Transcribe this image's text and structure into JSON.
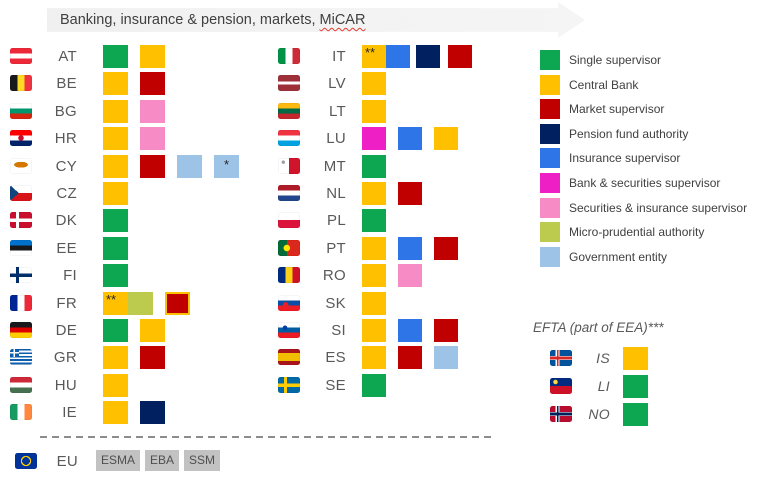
{
  "title": {
    "prefix": "Banking, insurance & pension, markets, ",
    "micar": "MiCAR"
  },
  "palette": {
    "single": "#0ca750",
    "central": "#ffc000",
    "market": "#c00000",
    "pension": "#002060",
    "insurance": "#2e75e8",
    "bank_sec": "#ee1fc5",
    "sec_ins": "#f78bc5",
    "micro": "#bccb4d",
    "gov": "#9dc3e6"
  },
  "legend": [
    {
      "role": "single",
      "label": "Single supervisor"
    },
    {
      "role": "central",
      "label": "Central Bank"
    },
    {
      "role": "market",
      "label": "Market supervisor"
    },
    {
      "role": "pension",
      "label": "Pension fund authority"
    },
    {
      "role": "insurance",
      "label": "Insurance supervisor"
    },
    {
      "role": "bank_sec",
      "label": "Bank & securities supervisor"
    },
    {
      "role": "sec_ins",
      "label": "Securities & insurance supervisor"
    },
    {
      "role": "micro",
      "label": "Micro-prudential authority"
    },
    {
      "role": "gov",
      "label": "Government entity"
    }
  ],
  "columns": {
    "left": [
      {
        "code": "AT",
        "squares": [
          {
            "role": "single"
          },
          {
            "role": "central"
          }
        ]
      },
      {
        "code": "BE",
        "squares": [
          {
            "role": "central"
          },
          {
            "role": "market"
          }
        ]
      },
      {
        "code": "BG",
        "squares": [
          {
            "role": "central"
          },
          {
            "role": "sec_ins"
          }
        ]
      },
      {
        "code": "HR",
        "squares": [
          {
            "role": "central"
          },
          {
            "role": "sec_ins"
          }
        ]
      },
      {
        "code": "CY",
        "squares": [
          {
            "role": "central"
          },
          {
            "role": "market"
          },
          {
            "role": "gov"
          },
          {
            "role": "gov",
            "label": "*",
            "label_center": true
          }
        ]
      },
      {
        "code": "CZ",
        "squares": [
          {
            "role": "central"
          }
        ]
      },
      {
        "code": "DK",
        "squares": [
          {
            "role": "single"
          }
        ]
      },
      {
        "code": "EE",
        "squares": [
          {
            "role": "single"
          }
        ]
      },
      {
        "code": "FI",
        "squares": [
          {
            "role": "single"
          }
        ]
      },
      {
        "code": "FR",
        "squares": [
          {
            "role": "central",
            "label": "**"
          },
          {
            "role": "micro",
            "joined": true
          },
          {
            "role": "market",
            "outline": "#ffc000"
          }
        ]
      },
      {
        "code": "DE",
        "squares": [
          {
            "role": "single"
          },
          {
            "role": "central"
          }
        ]
      },
      {
        "code": "GR",
        "squares": [
          {
            "role": "central"
          },
          {
            "role": "market"
          }
        ]
      },
      {
        "code": "HU",
        "squares": [
          {
            "role": "central"
          }
        ]
      },
      {
        "code": "IE",
        "squares": [
          {
            "role": "central"
          },
          {
            "role": "pension"
          }
        ]
      }
    ],
    "middle": [
      {
        "code": "IT",
        "squares": [
          {
            "role": "central",
            "label": "**"
          },
          {
            "role": "insurance",
            "joined": true
          },
          {
            "role": "pension",
            "gap": 6
          },
          {
            "role": "market",
            "gap": 8
          }
        ]
      },
      {
        "code": "LV",
        "squares": [
          {
            "role": "central"
          }
        ]
      },
      {
        "code": "LT",
        "squares": [
          {
            "role": "central"
          }
        ]
      },
      {
        "code": "LU",
        "squares": [
          {
            "role": "bank_sec"
          },
          {
            "role": "insurance"
          },
          {
            "role": "central"
          }
        ]
      },
      {
        "code": "MT",
        "squares": [
          {
            "role": "single"
          }
        ]
      },
      {
        "code": "NL",
        "squares": [
          {
            "role": "central"
          },
          {
            "role": "market"
          }
        ]
      },
      {
        "code": "PL",
        "squares": [
          {
            "role": "single"
          }
        ]
      },
      {
        "code": "PT",
        "squares": [
          {
            "role": "central"
          },
          {
            "role": "insurance"
          },
          {
            "role": "market"
          }
        ]
      },
      {
        "code": "RO",
        "squares": [
          {
            "role": "central"
          },
          {
            "role": "sec_ins"
          }
        ]
      },
      {
        "code": "SK",
        "squares": [
          {
            "role": "central"
          }
        ]
      },
      {
        "code": "SI",
        "squares": [
          {
            "role": "central"
          },
          {
            "role": "insurance"
          },
          {
            "role": "market"
          }
        ]
      },
      {
        "code": "ES",
        "squares": [
          {
            "role": "central"
          },
          {
            "role": "market"
          },
          {
            "role": "gov"
          }
        ]
      },
      {
        "code": "SE",
        "squares": [
          {
            "role": "single"
          }
        ]
      }
    ]
  },
  "efta": {
    "title": "EFTA (part of EEA)***",
    "rows": [
      {
        "code": "IS",
        "squares": [
          {
            "role": "central"
          }
        ]
      },
      {
        "code": "LI",
        "squares": [
          {
            "role": "single"
          }
        ]
      },
      {
        "code": "NO",
        "squares": [
          {
            "role": "single"
          }
        ]
      }
    ]
  },
  "eu": {
    "code": "EU",
    "badges": [
      "ESMA",
      "EBA",
      "SSM"
    ]
  }
}
